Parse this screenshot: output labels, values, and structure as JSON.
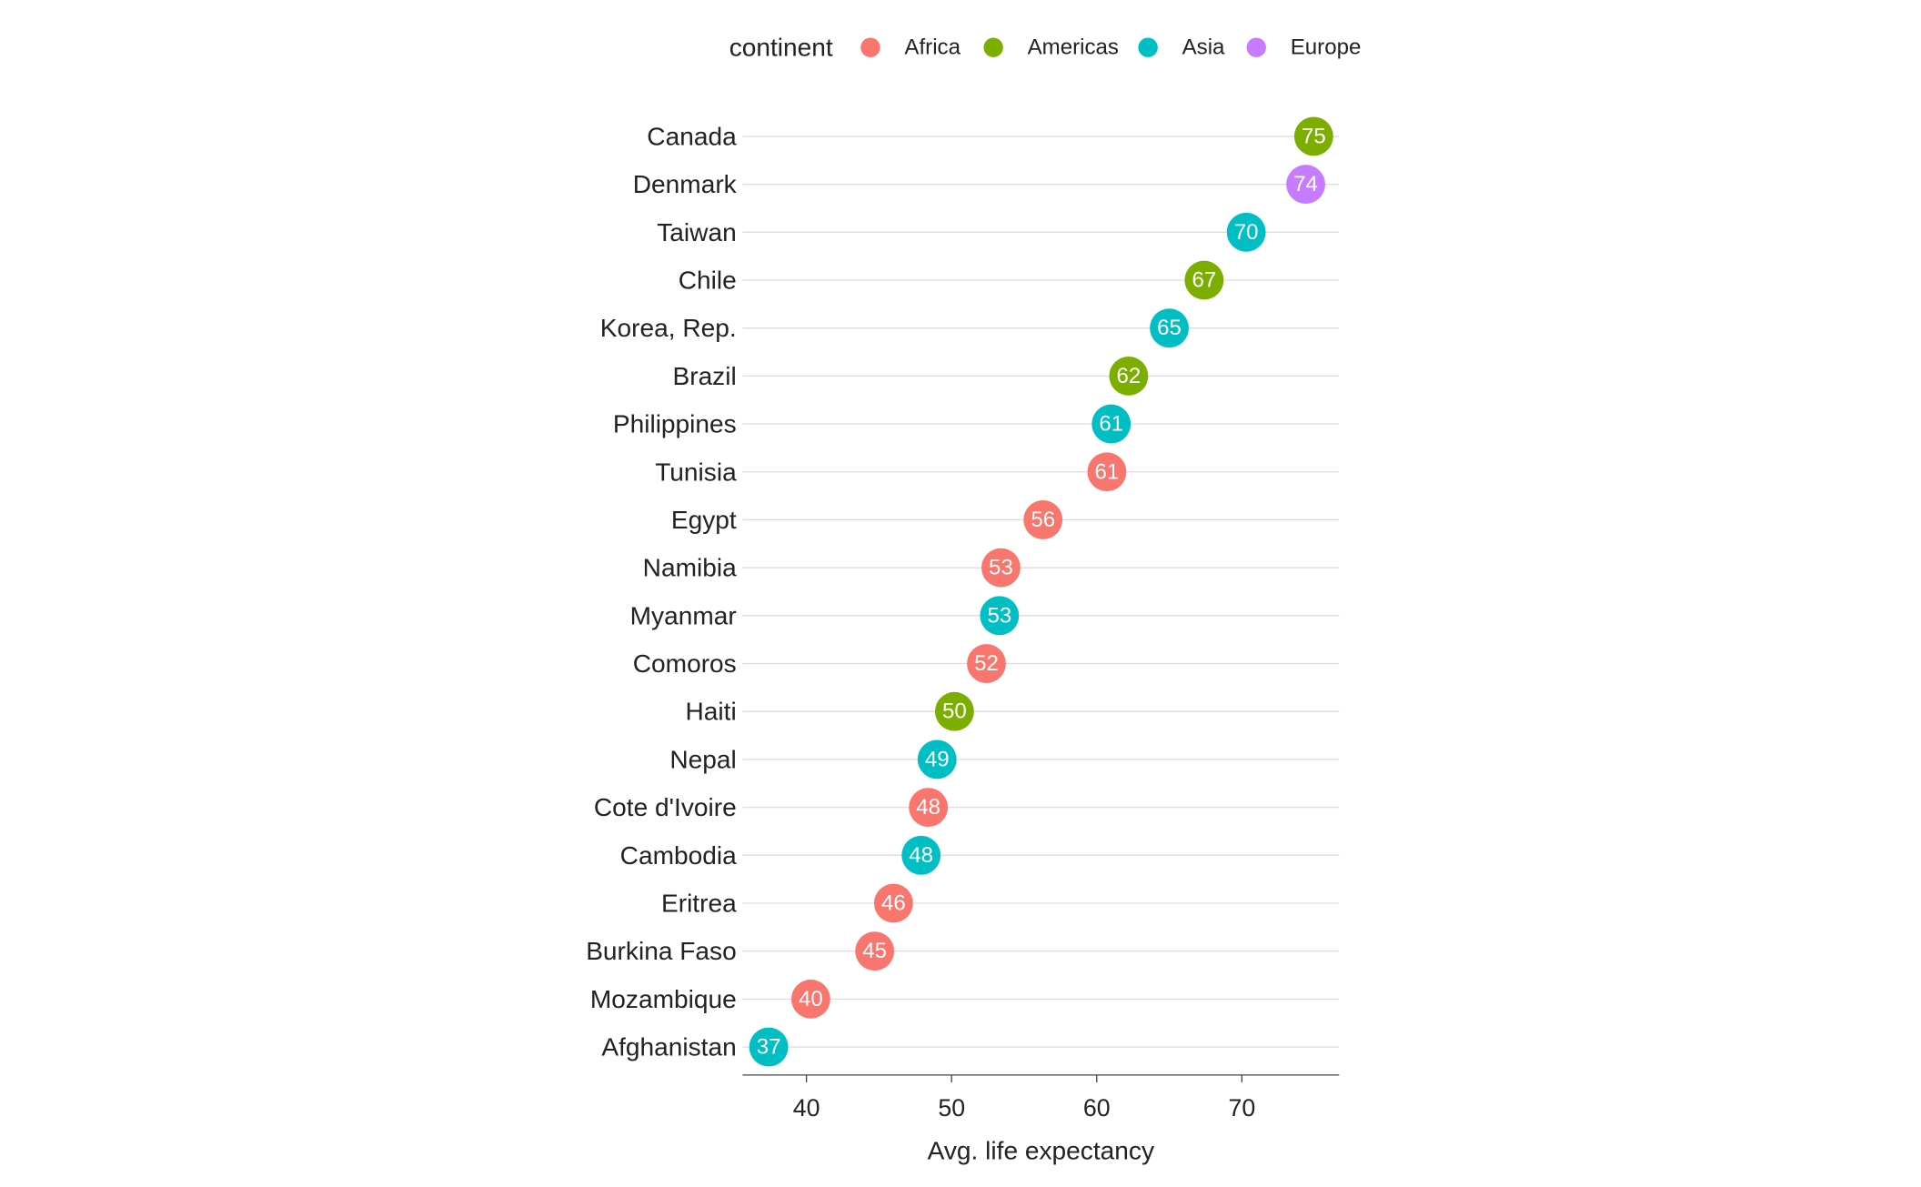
{
  "chart_data": {
    "type": "dot",
    "categories": [
      "Canada",
      "Denmark",
      "Taiwan",
      "Chile",
      "Korea, Rep.",
      "Brazil",
      "Philippines",
      "Tunisia",
      "Egypt",
      "Namibia",
      "Myanmar",
      "Comoros",
      "Haiti",
      "Nepal",
      "Cote d'Ivoire",
      "Cambodia",
      "Eritrea",
      "Burkina Faso",
      "Mozambique",
      "Afghanistan"
    ],
    "values": [
      74.95,
      74.4,
      70.3,
      67.4,
      65.0,
      62.2,
      61.0,
      60.7,
      56.3,
      53.4,
      53.3,
      52.4,
      50.2,
      49.0,
      48.4,
      47.9,
      46.0,
      44.7,
      40.3,
      37.4
    ],
    "value_labels": [
      "75",
      "74",
      "70",
      "67",
      "65",
      "62",
      "61",
      "61",
      "56",
      "53",
      "53",
      "52",
      "50",
      "49",
      "48",
      "48",
      "46",
      "45",
      "40",
      "37"
    ],
    "groups": [
      "Americas",
      "Europe",
      "Asia",
      "Americas",
      "Asia",
      "Americas",
      "Asia",
      "Africa",
      "Africa",
      "Africa",
      "Asia",
      "Africa",
      "Americas",
      "Asia",
      "Africa",
      "Asia",
      "Africa",
      "Africa",
      "Africa",
      "Asia"
    ],
    "legend": {
      "title": "continent",
      "position": "top",
      "items": [
        {
          "name": "Africa",
          "color": "#f8766d"
        },
        {
          "name": "Americas",
          "color": "#7cae00"
        },
        {
          "name": "Asia",
          "color": "#00bfc4"
        },
        {
          "name": "Europe",
          "color": "#c77cff"
        }
      ]
    },
    "xlabel": "Avg. life expectancy",
    "xlim": [
      35.6,
      76.7
    ],
    "xticks": [
      40,
      50,
      60,
      70
    ],
    "grid": true
  }
}
